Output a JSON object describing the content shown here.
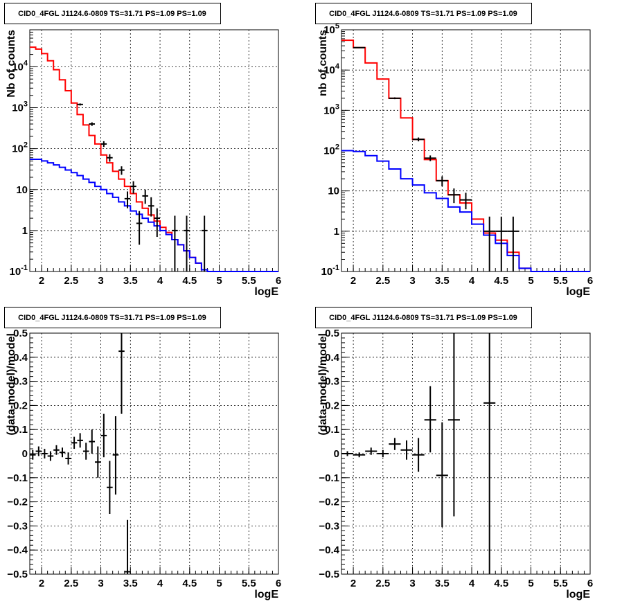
{
  "chart_data": [
    {
      "type": "line",
      "title": "CID0_4FGL J1124.6-0809 TS=31.71 PS=1.09 PS=1.09",
      "xlabel": "logE",
      "ylabel": "Nb of counts",
      "xlim": [
        1.8,
        6.0
      ],
      "ylim": [
        0.1,
        80000
      ],
      "yscale": "log",
      "grid": true,
      "xticks": [
        "2",
        "2.5",
        "3",
        "3.5",
        "4",
        "4.5",
        "5",
        "5.5",
        "6"
      ],
      "yticks": [
        "10^-1",
        "1",
        "10",
        "10^2",
        "10^3",
        "10^4"
      ],
      "bin_edges": [
        1.8,
        1.9,
        2.0,
        2.1,
        2.2,
        2.3,
        2.4,
        2.5,
        2.6,
        2.7,
        2.8,
        2.9,
        3.0,
        3.1,
        3.2,
        3.3,
        3.4,
        3.5,
        3.6,
        3.7,
        3.8,
        3.9,
        4.0,
        4.1,
        4.2,
        4.3,
        4.4,
        4.5,
        4.6,
        4.7,
        4.8,
        4.9,
        5.0,
        5.1,
        5.2,
        5.3,
        5.4,
        5.5,
        5.6,
        5.7,
        5.8,
        5.9,
        6.0
      ],
      "series": [
        {
          "color": "#ff0000",
          "style": "histogram",
          "values": [
            30000,
            27000,
            21000,
            14000,
            8500,
            4800,
            2600,
            1300,
            680,
            380,
            210,
            130,
            70,
            45,
            28,
            18,
            12,
            8,
            5,
            3.5,
            2.4,
            1.7,
            1.2,
            0.9,
            0.6,
            0.45,
            0.32,
            0.22,
            0.16,
            0.11,
            0.1,
            0.1,
            0.1,
            0.1,
            0.1,
            0.1,
            0.1,
            0.1,
            0.1,
            0.1,
            0.1,
            0.1
          ]
        },
        {
          "color": "#0000ff",
          "style": "histogram",
          "values": [
            55,
            55,
            50,
            45,
            40,
            35,
            30,
            26,
            22,
            18,
            15,
            12,
            10,
            8,
            6.5,
            5,
            4,
            3,
            2.5,
            2,
            1.6,
            1.3,
            1.0,
            0.8,
            0.6,
            0.45,
            0.32,
            0.22,
            0.16,
            0.11,
            0.1,
            0.1,
            0.1,
            0.1,
            0.1,
            0.1,
            0.1,
            0.1,
            0.1,
            0.1,
            0.1,
            0.1
          ]
        },
        {
          "color": "#000000",
          "style": "errorbar",
          "points": [
            {
              "x": 2.65,
              "y": 1200,
              "lo": 1130,
              "hi": 1270,
              "xerr": 0.05
            },
            {
              "x": 2.85,
              "y": 400,
              "lo": 360,
              "hi": 440,
              "xerr": 0.05
            },
            {
              "x": 3.05,
              "y": 130,
              "lo": 110,
              "hi": 152,
              "xerr": 0.05
            },
            {
              "x": 3.15,
              "y": 60,
              "lo": 48,
              "hi": 73,
              "xerr": 0.05
            },
            {
              "x": 3.35,
              "y": 30,
              "lo": 23,
              "hi": 37,
              "xerr": 0.05
            },
            {
              "x": 3.45,
              "y": 6,
              "lo": 3.5,
              "hi": 9,
              "xerr": 0.05
            },
            {
              "x": 3.55,
              "y": 12,
              "lo": 8,
              "hi": 16,
              "xerr": 0.05
            },
            {
              "x": 3.65,
              "y": 1.5,
              "lo": 0.45,
              "hi": 3.0,
              "xerr": 0.05
            },
            {
              "x": 3.75,
              "y": 7,
              "lo": 4.5,
              "hi": 10,
              "xerr": 0.05
            },
            {
              "x": 3.85,
              "y": 4,
              "lo": 2.2,
              "hi": 6.5,
              "xerr": 0.05
            },
            {
              "x": 3.95,
              "y": 2,
              "lo": 0.7,
              "hi": 3.5,
              "xerr": 0.05
            },
            {
              "x": 4.25,
              "y": 1,
              "lo": 0.1,
              "hi": 2.3,
              "xerr": 0.05
            },
            {
              "x": 4.45,
              "y": 1,
              "lo": 0.1,
              "hi": 2.3,
              "xerr": 0.05
            },
            {
              "x": 4.75,
              "y": 1,
              "lo": 0.1,
              "hi": 2.3,
              "xerr": 0.05
            }
          ]
        }
      ]
    },
    {
      "type": "line",
      "title": "CID0_4FGL J1124.6-0809 TS=31.71 PS=1.09 PS=1.09",
      "xlabel": "logE",
      "ylabel": "nb of counts",
      "xlim": [
        1.8,
        6.0
      ],
      "ylim": [
        0.1,
        100000
      ],
      "yscale": "log",
      "grid": true,
      "xticks": [
        "2",
        "2.5",
        "3",
        "3.5",
        "4",
        "4.5",
        "5",
        "5.5",
        "6"
      ],
      "yticks": [
        "10^-1",
        "1",
        "10",
        "10^2",
        "10^3",
        "10^4",
        "10^5"
      ],
      "bin_edges": [
        1.8,
        2.0,
        2.2,
        2.4,
        2.6,
        2.8,
        3.0,
        3.2,
        3.4,
        3.6,
        3.8,
        4.0,
        4.2,
        4.4,
        4.6,
        4.8,
        5.0,
        5.2,
        5.4,
        5.6,
        5.8,
        6.0
      ],
      "series": [
        {
          "color": "#ff0000",
          "style": "histogram",
          "values": [
            55000,
            36000,
            15000,
            6000,
            2000,
            650,
            190,
            60,
            18,
            8,
            5,
            2,
            0.9,
            0.6,
            0.3,
            0.12,
            0.1,
            0.1,
            0.1,
            0.1,
            0.1
          ]
        },
        {
          "color": "#0000ff",
          "style": "histogram",
          "values": [
            100,
            95,
            75,
            55,
            35,
            20,
            14,
            9,
            6.5,
            4,
            3,
            1.5,
            0.8,
            0.5,
            0.25,
            0.12,
            0.1,
            0.1,
            0.1,
            0.1,
            0.1
          ]
        },
        {
          "color": "#000000",
          "style": "errorbar",
          "points": [
            {
              "x": 2.1,
              "y": 36000,
              "lo": 35500,
              "hi": 36500,
              "xerr": 0.1
            },
            {
              "x": 2.7,
              "y": 2000,
              "lo": 1900,
              "hi": 2100,
              "xerr": 0.1
            },
            {
              "x": 3.1,
              "y": 190,
              "lo": 170,
              "hi": 212,
              "xerr": 0.1
            },
            {
              "x": 3.3,
              "y": 65,
              "lo": 55,
              "hi": 76,
              "xerr": 0.1
            },
            {
              "x": 3.5,
              "y": 18,
              "lo": 13,
              "hi": 23,
              "xerr": 0.1
            },
            {
              "x": 3.7,
              "y": 8,
              "lo": 5,
              "hi": 11.5,
              "xerr": 0.1
            },
            {
              "x": 3.9,
              "y": 6,
              "lo": 3.5,
              "hi": 9,
              "xerr": 0.1
            },
            {
              "x": 4.3,
              "y": 1,
              "lo": 0.1,
              "hi": 2.3,
              "xerr": 0.1
            },
            {
              "x": 4.5,
              "y": 1,
              "lo": 0.1,
              "hi": 2.3,
              "xerr": 0.1
            },
            {
              "x": 4.7,
              "y": 1,
              "lo": 0.1,
              "hi": 2.3,
              "xerr": 0.1
            }
          ]
        }
      ]
    },
    {
      "type": "scatter",
      "title": "CID0_4FGL J1124.6-0809 TS=31.71 PS=1.09 PS=1.09",
      "xlabel": "logE",
      "ylabel": "(data-model)/model",
      "xlim": [
        1.8,
        6.0
      ],
      "ylim": [
        -0.5,
        0.5
      ],
      "yscale": "linear",
      "grid": true,
      "xticks": [
        "2",
        "2.5",
        "3",
        "3.5",
        "4",
        "4.5",
        "5",
        "5.5",
        "6"
      ],
      "yticks": [
        "-0.5",
        "-0.4",
        "-0.3",
        "-0.2",
        "-0.1",
        "0",
        "0.1",
        "0.2",
        "0.3",
        "0.4",
        "0.5"
      ],
      "series": [
        {
          "color": "#000000",
          "style": "errorbar",
          "points": [
            {
              "x": 1.85,
              "y": -0.005,
              "lo": -0.025,
              "hi": 0.015,
              "xerr": 0.05
            },
            {
              "x": 1.95,
              "y": 0.01,
              "lo": -0.01,
              "hi": 0.03,
              "xerr": 0.05
            },
            {
              "x": 2.05,
              "y": 0.0,
              "lo": -0.02,
              "hi": 0.02,
              "xerr": 0.05
            },
            {
              "x": 2.15,
              "y": -0.01,
              "lo": -0.03,
              "hi": 0.01,
              "xerr": 0.05
            },
            {
              "x": 2.25,
              "y": 0.015,
              "lo": -0.005,
              "hi": 0.035,
              "xerr": 0.05
            },
            {
              "x": 2.35,
              "y": 0.005,
              "lo": -0.015,
              "hi": 0.025,
              "xerr": 0.05
            },
            {
              "x": 2.45,
              "y": -0.02,
              "lo": -0.045,
              "hi": 0.005,
              "xerr": 0.05
            },
            {
              "x": 2.55,
              "y": 0.045,
              "lo": 0.02,
              "hi": 0.07,
              "xerr": 0.05
            },
            {
              "x": 2.65,
              "y": 0.055,
              "lo": 0.025,
              "hi": 0.085,
              "xerr": 0.05
            },
            {
              "x": 2.75,
              "y": 0.01,
              "lo": -0.025,
              "hi": 0.045,
              "xerr": 0.05
            },
            {
              "x": 2.85,
              "y": 0.05,
              "lo": 0.0,
              "hi": 0.1,
              "xerr": 0.05
            },
            {
              "x": 2.95,
              "y": -0.035,
              "lo": -0.1,
              "hi": 0.03,
              "xerr": 0.05
            },
            {
              "x": 3.05,
              "y": 0.075,
              "lo": -0.015,
              "hi": 0.165,
              "xerr": 0.05
            },
            {
              "x": 3.15,
              "y": -0.14,
              "lo": -0.25,
              "hi": -0.03,
              "xerr": 0.05
            },
            {
              "x": 3.25,
              "y": -0.005,
              "lo": -0.17,
              "hi": 0.155,
              "xerr": 0.05
            },
            {
              "x": 3.35,
              "y": 0.425,
              "lo": 0.165,
              "hi": 0.5,
              "xerr": 0.05
            },
            {
              "x": 3.45,
              "y": -0.49,
              "lo": -0.5,
              "hi": -0.275,
              "xerr": 0.05
            }
          ]
        }
      ]
    },
    {
      "type": "scatter",
      "title": "CID0_4FGL J1124.6-0809 TS=31.71 PS=1.09 PS=1.09",
      "xlabel": "logE",
      "ylabel": "(data-model)/model",
      "xlim": [
        1.8,
        6.0
      ],
      "ylim": [
        -0.5,
        0.5
      ],
      "yscale": "linear",
      "grid": true,
      "xticks": [
        "2",
        "2.5",
        "3",
        "3.5",
        "4",
        "4.5",
        "5",
        "5.5",
        "6"
      ],
      "yticks": [
        "-0.5",
        "-0.4",
        "-0.3",
        "-0.2",
        "-0.1",
        "0",
        "0.1",
        "0.2",
        "0.3",
        "0.4",
        "0.5"
      ],
      "series": [
        {
          "color": "#000000",
          "style": "errorbar",
          "points": [
            {
              "x": 1.9,
              "y": 0.0,
              "lo": -0.01,
              "hi": 0.01,
              "xerr": 0.1
            },
            {
              "x": 2.1,
              "y": -0.005,
              "lo": -0.015,
              "hi": 0.005,
              "xerr": 0.1
            },
            {
              "x": 2.3,
              "y": 0.01,
              "lo": -0.005,
              "hi": 0.025,
              "xerr": 0.1
            },
            {
              "x": 2.5,
              "y": 0.0,
              "lo": -0.015,
              "hi": 0.015,
              "xerr": 0.1
            },
            {
              "x": 2.7,
              "y": 0.04,
              "lo": 0.015,
              "hi": 0.065,
              "xerr": 0.1
            },
            {
              "x": 2.9,
              "y": 0.015,
              "lo": -0.025,
              "hi": 0.055,
              "xerr": 0.1
            },
            {
              "x": 3.1,
              "y": -0.005,
              "lo": -0.075,
              "hi": 0.065,
              "xerr": 0.1
            },
            {
              "x": 3.3,
              "y": 0.14,
              "lo": 0.005,
              "hi": 0.28,
              "xerr": 0.1
            },
            {
              "x": 3.5,
              "y": -0.09,
              "lo": -0.305,
              "hi": 0.13,
              "xerr": 0.1
            },
            {
              "x": 3.7,
              "y": 0.14,
              "lo": -0.26,
              "hi": 0.5,
              "xerr": 0.1
            },
            {
              "x": 4.3,
              "y": 0.21,
              "lo": -0.5,
              "hi": 0.5,
              "xerr": 0.1
            }
          ]
        }
      ]
    }
  ]
}
